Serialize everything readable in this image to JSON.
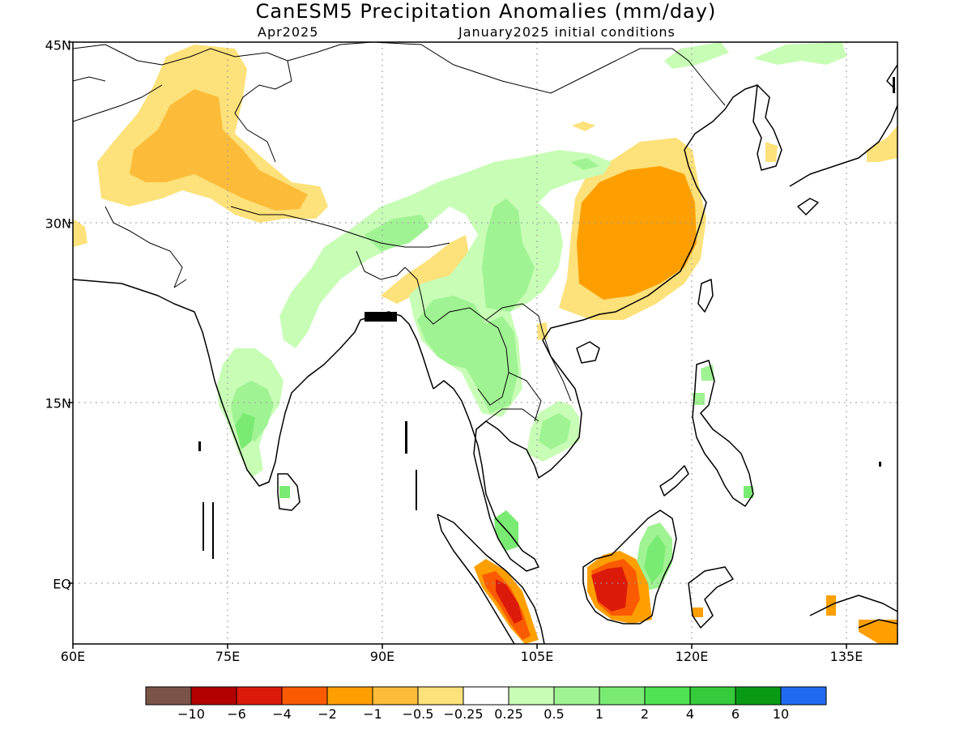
{
  "title": "CanESM5 Precipitation Anomalies (mm/day)",
  "subtitle_left": "Apr2025",
  "subtitle_right": "January2025 initial conditions",
  "map": {
    "extent": {
      "lon_min": 60,
      "lon_max": 140,
      "lat_min": -6,
      "lat_max": 45
    },
    "y_ticks": [
      {
        "lat": 45,
        "label": "45N"
      },
      {
        "lat": 30,
        "label": "30N"
      },
      {
        "lat": 15,
        "label": "15N"
      },
      {
        "lat": 0,
        "label": "EQ"
      }
    ],
    "x_ticks": [
      {
        "lon": 60,
        "label": "60E"
      },
      {
        "lon": 75,
        "label": "75E"
      },
      {
        "lon": 90,
        "label": "90E"
      },
      {
        "lon": 105,
        "label": "105E"
      },
      {
        "lon": 120,
        "label": "120E"
      },
      {
        "lon": 135,
        "label": "135E"
      }
    ],
    "grid": true
  },
  "colorbar": {
    "colors": [
      "#7b5449",
      "#b30000",
      "#dc1a0a",
      "#fa5a00",
      "#fd9f00",
      "#fcbc3a",
      "#fde17a",
      "#ffffff",
      "#c8fdb6",
      "#a0f393",
      "#7aeb72",
      "#4fe353",
      "#35cb3b",
      "#0a9b16",
      "#206af2"
    ],
    "labels": [
      "−10",
      "−6",
      "−4",
      "−2",
      "−1",
      "−0.5",
      "−0.25",
      "0.25",
      "0.5",
      "1",
      "2",
      "4",
      "6",
      "10"
    ]
  }
}
